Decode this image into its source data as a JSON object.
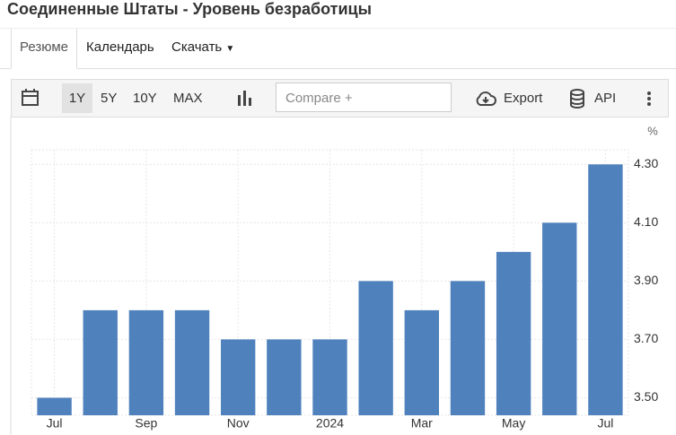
{
  "header": {
    "title": "Соединенные Штаты - Уровень безработицы"
  },
  "tabs": [
    "Резюме",
    "Календарь",
    "Скачать"
  ],
  "toolbar": {
    "ranges": [
      "1Y",
      "5Y",
      "10Y",
      "MAX"
    ],
    "compare": "Compare +",
    "export": "Export",
    "api": "API"
  },
  "chart_data": {
    "type": "bar",
    "unit": "%",
    "categories": [
      "Jul",
      null,
      "Sep",
      null,
      "Nov",
      null,
      "2024",
      null,
      "Mar",
      null,
      "May",
      null,
      "Jul"
    ],
    "values": [
      3.5,
      3.8,
      3.8,
      3.8,
      3.7,
      3.7,
      3.7,
      3.9,
      3.8,
      3.9,
      4.0,
      4.1,
      4.3
    ],
    "color": "#4f81bd",
    "ylim": [
      3.44,
      4.35
    ],
    "yticks": [
      {
        "value": 3.5,
        "label": "3.50"
      },
      {
        "value": 3.7,
        "label": "3.70"
      },
      {
        "value": 3.9,
        "label": "3.90"
      },
      {
        "value": 4.1,
        "label": "4.10"
      },
      {
        "value": 4.3,
        "label": "4.30"
      }
    ],
    "grid": true
  }
}
